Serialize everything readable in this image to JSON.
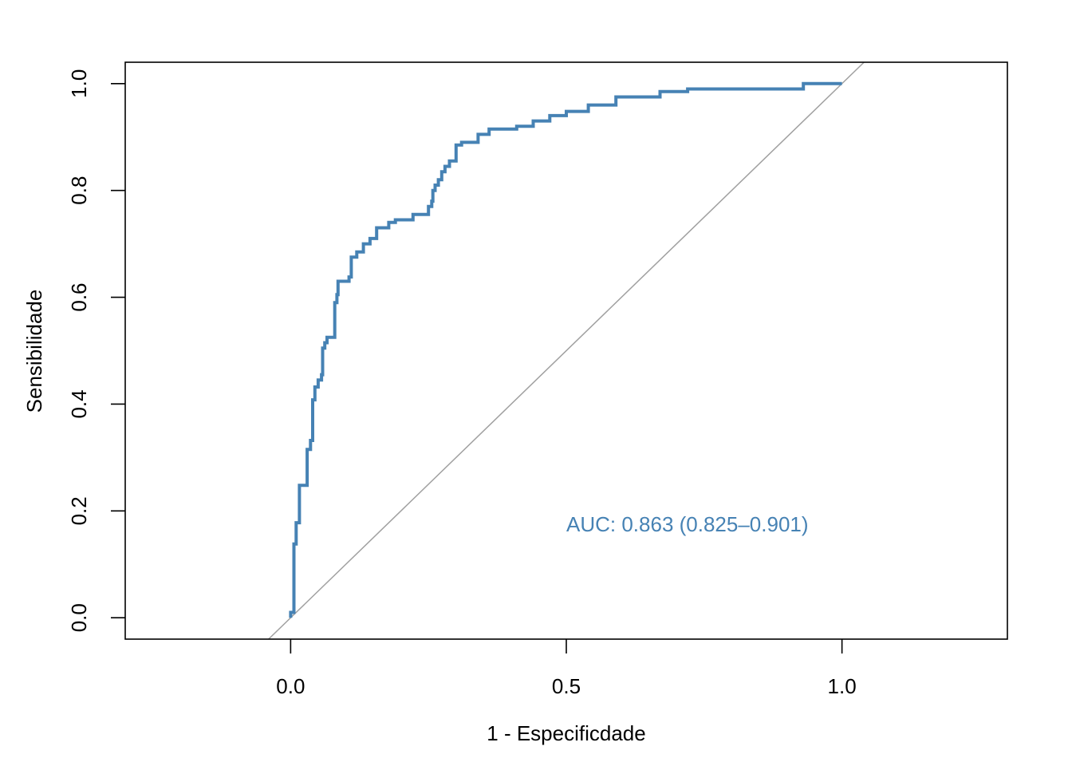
{
  "chart_data": {
    "type": "line",
    "title": "",
    "xlabel": "1 - Especificdade",
    "ylabel": "Sensibilidade",
    "xlim": [
      -0.3,
      1.3
    ],
    "ylim": [
      -0.04,
      1.04
    ],
    "grid": false,
    "x_ticks": [
      0.0,
      0.5,
      1.0
    ],
    "x_tick_labels": [
      "0.0",
      "0.5",
      "1.0"
    ],
    "y_ticks": [
      0.0,
      0.2,
      0.4,
      0.6,
      0.8,
      1.0
    ],
    "y_tick_labels": [
      "0.0",
      "0.2",
      "0.4",
      "0.6",
      "0.8",
      "1.0"
    ],
    "colors": {
      "roc": "#4682B4",
      "reference": "#A0A0A0",
      "axes": "#000000"
    },
    "reference_line": {
      "slope": 1,
      "intercept": 0
    },
    "annotation": {
      "text": "AUC: 0.863 (0.825–0.901)",
      "x": 0.5,
      "y": 0.175
    },
    "series": [
      {
        "values": [
          [
            0.0,
            0.0
          ],
          [
            0.0,
            0.01
          ],
          [
            0.006,
            0.01
          ],
          [
            0.006,
            0.138
          ],
          [
            0.01,
            0.138
          ],
          [
            0.01,
            0.178
          ],
          [
            0.016,
            0.178
          ],
          [
            0.016,
            0.248
          ],
          [
            0.03,
            0.248
          ],
          [
            0.03,
            0.315
          ],
          [
            0.036,
            0.315
          ],
          [
            0.036,
            0.332
          ],
          [
            0.04,
            0.332
          ],
          [
            0.04,
            0.408
          ],
          [
            0.044,
            0.408
          ],
          [
            0.044,
            0.432
          ],
          [
            0.05,
            0.432
          ],
          [
            0.05,
            0.445
          ],
          [
            0.056,
            0.445
          ],
          [
            0.056,
            0.455
          ],
          [
            0.058,
            0.455
          ],
          [
            0.058,
            0.505
          ],
          [
            0.062,
            0.505
          ],
          [
            0.062,
            0.515
          ],
          [
            0.066,
            0.515
          ],
          [
            0.066,
            0.525
          ],
          [
            0.08,
            0.525
          ],
          [
            0.08,
            0.59
          ],
          [
            0.084,
            0.59
          ],
          [
            0.084,
            0.605
          ],
          [
            0.086,
            0.605
          ],
          [
            0.086,
            0.63
          ],
          [
            0.106,
            0.63
          ],
          [
            0.106,
            0.638
          ],
          [
            0.11,
            0.638
          ],
          [
            0.11,
            0.675
          ],
          [
            0.12,
            0.675
          ],
          [
            0.12,
            0.685
          ],
          [
            0.132,
            0.685
          ],
          [
            0.132,
            0.7
          ],
          [
            0.144,
            0.7
          ],
          [
            0.144,
            0.71
          ],
          [
            0.156,
            0.71
          ],
          [
            0.156,
            0.73
          ],
          [
            0.178,
            0.73
          ],
          [
            0.178,
            0.74
          ],
          [
            0.19,
            0.74
          ],
          [
            0.19,
            0.745
          ],
          [
            0.222,
            0.745
          ],
          [
            0.222,
            0.755
          ],
          [
            0.25,
            0.755
          ],
          [
            0.25,
            0.77
          ],
          [
            0.256,
            0.77
          ],
          [
            0.256,
            0.78
          ],
          [
            0.258,
            0.78
          ],
          [
            0.258,
            0.8
          ],
          [
            0.262,
            0.8
          ],
          [
            0.262,
            0.81
          ],
          [
            0.268,
            0.81
          ],
          [
            0.268,
            0.82
          ],
          [
            0.274,
            0.82
          ],
          [
            0.274,
            0.835
          ],
          [
            0.28,
            0.835
          ],
          [
            0.28,
            0.845
          ],
          [
            0.288,
            0.845
          ],
          [
            0.288,
            0.855
          ],
          [
            0.3,
            0.855
          ],
          [
            0.3,
            0.885
          ],
          [
            0.31,
            0.885
          ],
          [
            0.31,
            0.89
          ],
          [
            0.34,
            0.89
          ],
          [
            0.34,
            0.905
          ],
          [
            0.36,
            0.905
          ],
          [
            0.36,
            0.915
          ],
          [
            0.41,
            0.915
          ],
          [
            0.41,
            0.92
          ],
          [
            0.44,
            0.92
          ],
          [
            0.44,
            0.93
          ],
          [
            0.47,
            0.93
          ],
          [
            0.47,
            0.94
          ],
          [
            0.5,
            0.94
          ],
          [
            0.5,
            0.948
          ],
          [
            0.54,
            0.948
          ],
          [
            0.54,
            0.96
          ],
          [
            0.59,
            0.96
          ],
          [
            0.59,
            0.975
          ],
          [
            0.67,
            0.975
          ],
          [
            0.67,
            0.985
          ],
          [
            0.72,
            0.985
          ],
          [
            0.72,
            0.99
          ],
          [
            0.93,
            0.99
          ],
          [
            0.93,
            1.0
          ],
          [
            1.0,
            1.0
          ]
        ]
      }
    ]
  }
}
